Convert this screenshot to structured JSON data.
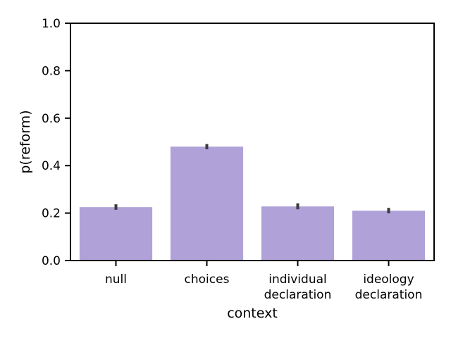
{
  "chart_data": {
    "type": "bar",
    "categories": [
      [
        "null"
      ],
      [
        "choices"
      ],
      [
        "individual",
        "declaration"
      ],
      [
        "ideology",
        "declaration"
      ]
    ],
    "values": [
      0.225,
      0.48,
      0.228,
      0.21
    ],
    "errors": [
      [
        0.214,
        0.237
      ],
      [
        0.469,
        0.491
      ],
      [
        0.216,
        0.241
      ],
      [
        0.199,
        0.222
      ]
    ],
    "xlabel": "context",
    "ylabel": "p(reform)",
    "ylim": [
      0,
      1.0
    ],
    "yticks": [
      "0.0",
      "0.2",
      "0.4",
      "0.6",
      "0.8",
      "1.0"
    ],
    "ytick_values": [
      0,
      0.2,
      0.4,
      0.6,
      0.8,
      1.0
    ],
    "grid": false,
    "colors": {
      "bar": "#b0a2d8",
      "error": "#3b3b3b",
      "axis": "#000000"
    }
  }
}
